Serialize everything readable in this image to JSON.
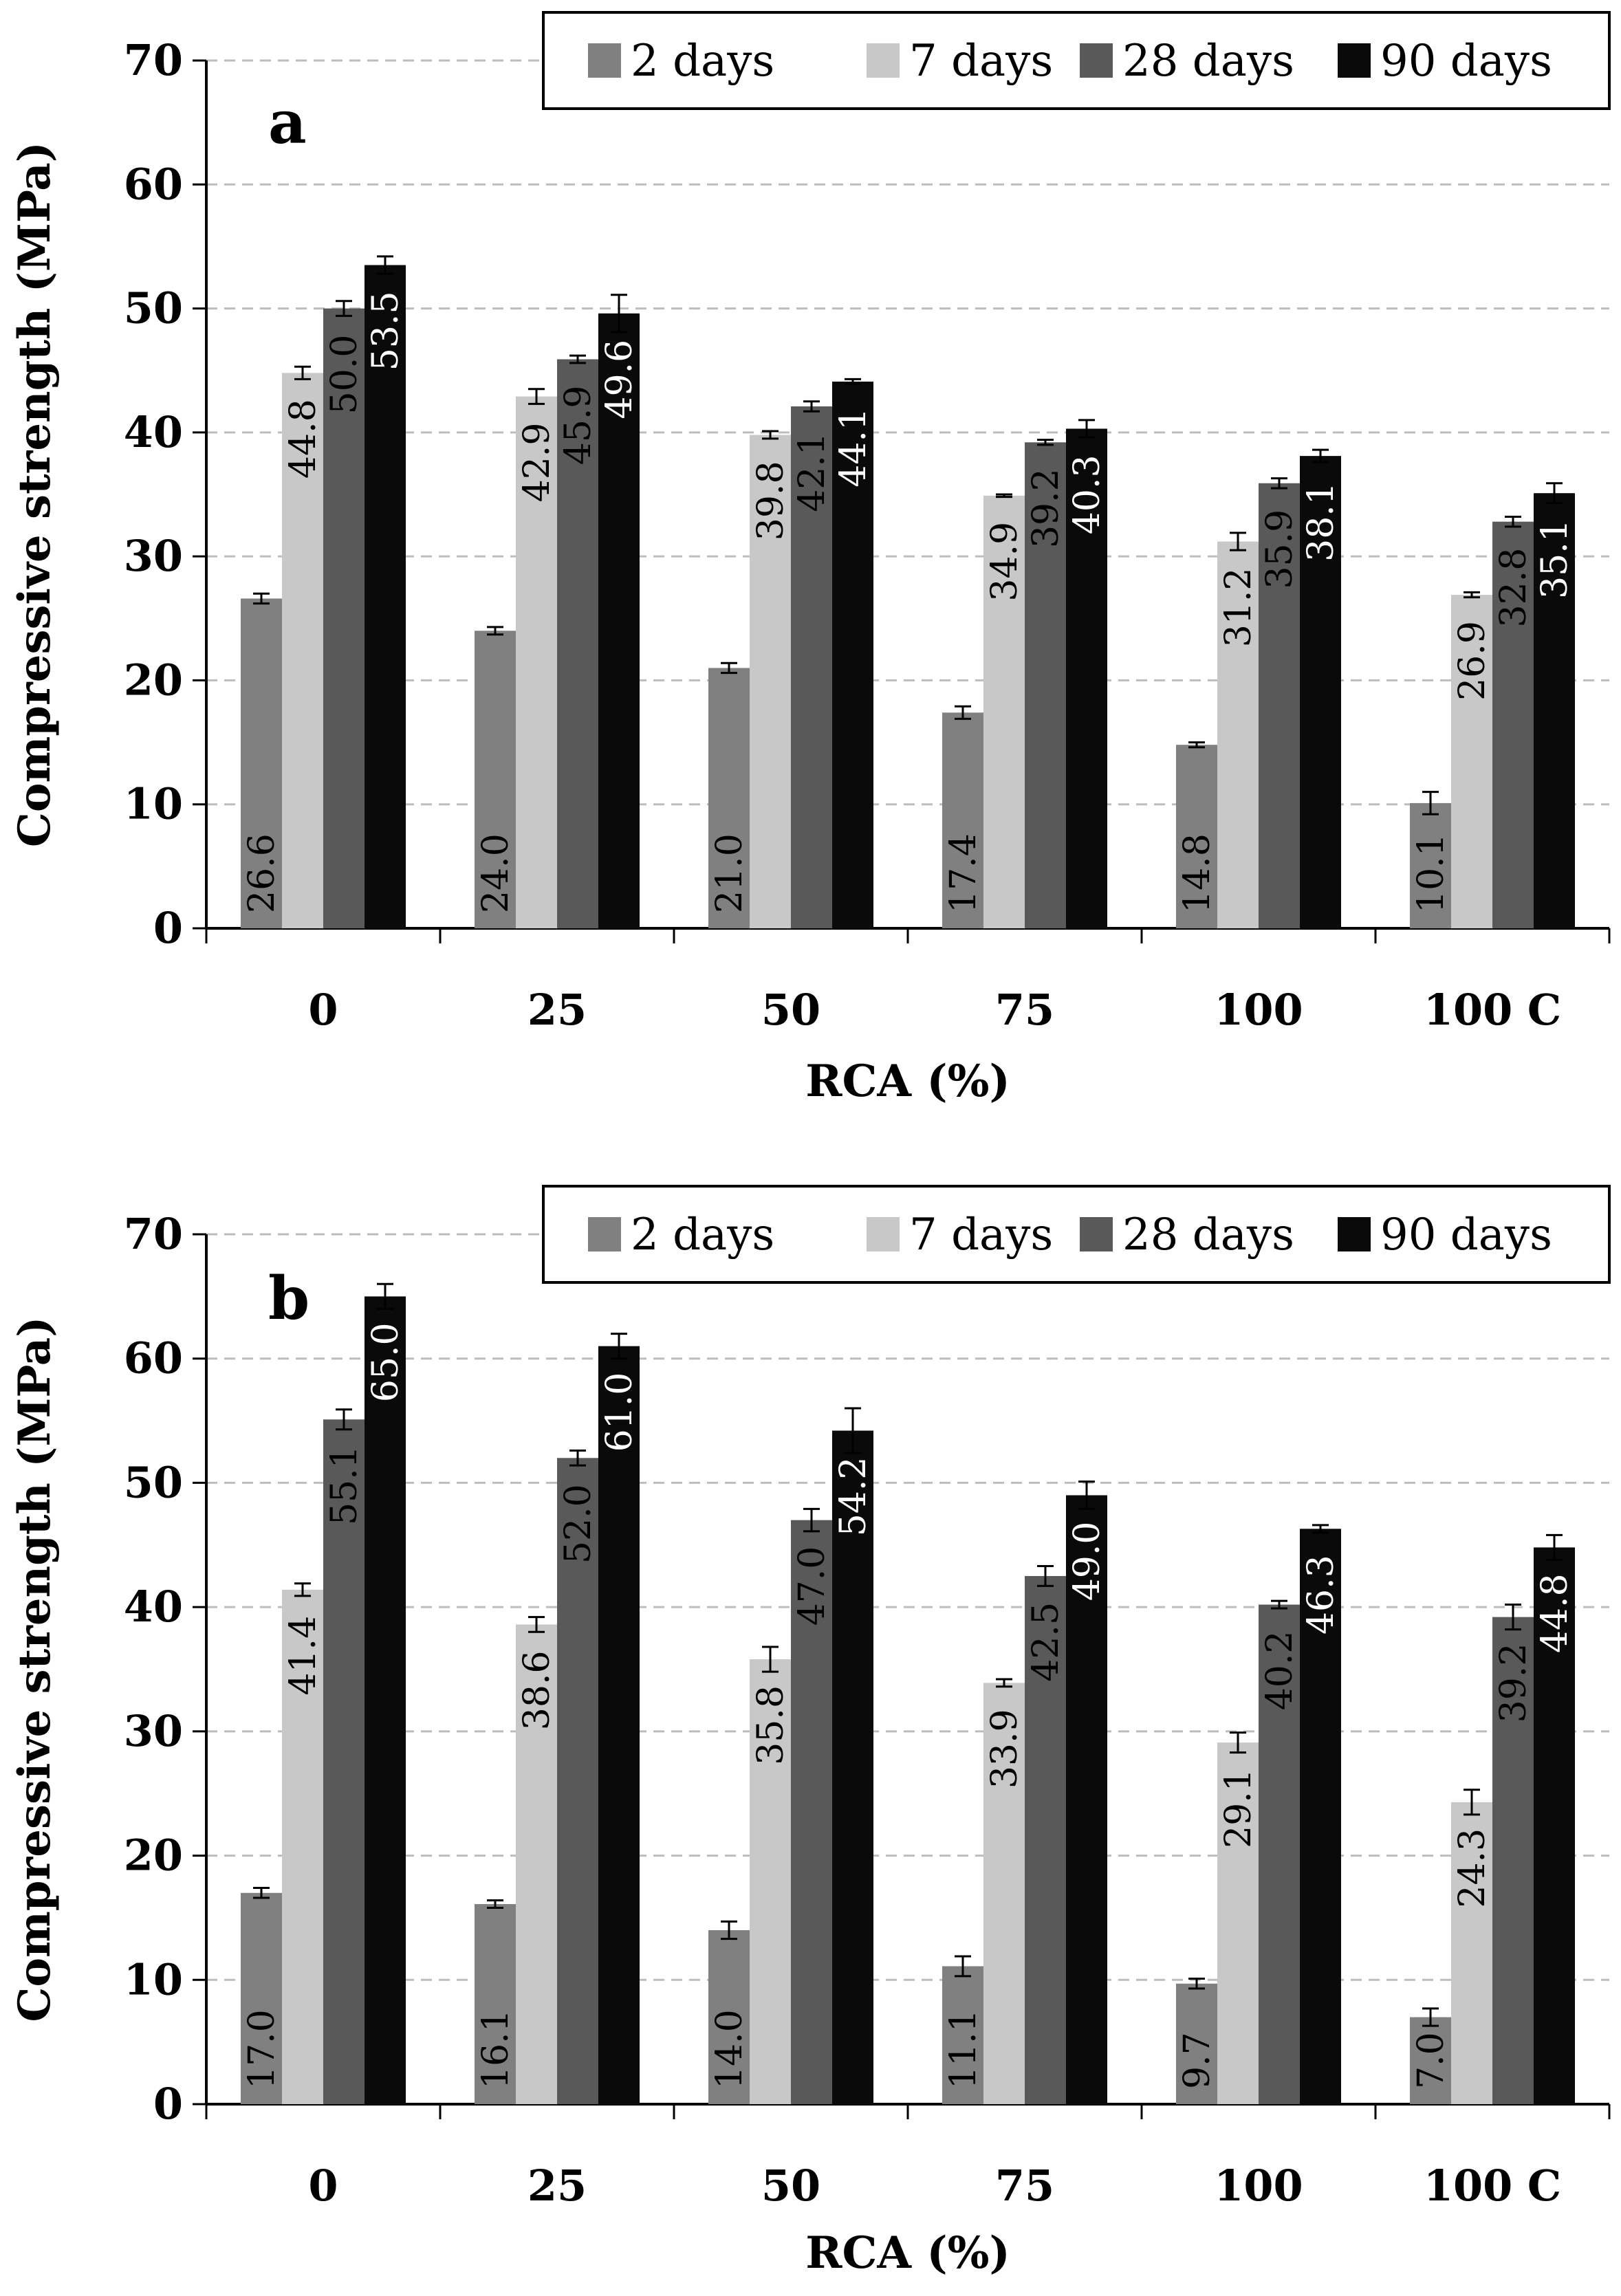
{
  "chart_data": [
    {
      "type": "bar",
      "panel_label": "a",
      "categories": [
        "0",
        "25",
        "50",
        "75",
        "100",
        "100 C"
      ],
      "series": [
        {
          "name": "2 days",
          "color": "#808080",
          "label_color": "#000000",
          "values": [
            26.6,
            24.0,
            21.0,
            17.4,
            14.8,
            10.1
          ],
          "errors": [
            0.4,
            0.3,
            0.4,
            0.5,
            0.2,
            0.9
          ]
        },
        {
          "name": "7 days",
          "color": "#c8c8c8",
          "label_color": "#000000",
          "values": [
            44.8,
            42.9,
            39.8,
            34.9,
            31.2,
            26.9
          ],
          "errors": [
            0.5,
            0.6,
            0.3,
            0.1,
            0.7,
            0.2
          ]
        },
        {
          "name": "28 days",
          "color": "#595959",
          "label_color": "#000000",
          "values": [
            50.0,
            45.9,
            42.1,
            39.2,
            35.9,
            32.8
          ],
          "errors": [
            0.6,
            0.3,
            0.4,
            0.2,
            0.4,
            0.4
          ]
        },
        {
          "name": "90 days",
          "color": "#0a0a0a",
          "label_color": "#ffffff",
          "values": [
            53.5,
            49.6,
            44.1,
            40.3,
            38.1,
            35.1
          ],
          "errors": [
            0.7,
            1.5,
            0.2,
            0.7,
            0.5,
            0.8
          ]
        }
      ],
      "xlabel": "RCA (%)",
      "ylabel": "Compressive strength (MPa)",
      "ylim": [
        0,
        70
      ],
      "yticks": [
        0,
        10,
        20,
        30,
        40,
        50,
        60,
        70
      ],
      "grid": "horizontal dashed",
      "legend_position": "top"
    },
    {
      "type": "bar",
      "panel_label": "b",
      "categories": [
        "0",
        "25",
        "50",
        "75",
        "100",
        "100 C"
      ],
      "series": [
        {
          "name": "2 days",
          "color": "#808080",
          "label_color": "#000000",
          "values": [
            17.0,
            16.1,
            14.0,
            11.1,
            9.7,
            7.0
          ],
          "errors": [
            0.4,
            0.3,
            0.7,
            0.8,
            0.4,
            0.7
          ]
        },
        {
          "name": "7 days",
          "color": "#c8c8c8",
          "label_color": "#000000",
          "values": [
            41.4,
            38.6,
            35.8,
            33.9,
            29.1,
            24.3
          ],
          "errors": [
            0.5,
            0.6,
            1.0,
            0.3,
            0.8,
            1.0
          ]
        },
        {
          "name": "28 days",
          "color": "#595959",
          "label_color": "#000000",
          "values": [
            55.1,
            52.0,
            47.0,
            42.5,
            40.2,
            39.2
          ],
          "errors": [
            0.8,
            0.6,
            0.9,
            0.8,
            0.3,
            1.0
          ]
        },
        {
          "name": "90 days",
          "color": "#0a0a0a",
          "label_color": "#ffffff",
          "values": [
            65.0,
            61.0,
            54.2,
            49.0,
            46.3,
            44.8
          ],
          "errors": [
            1.0,
            1.0,
            1.8,
            1.1,
            0.3,
            1.0
          ]
        }
      ],
      "xlabel": "RCA (%)",
      "ylabel": "Compressive strength (MPa)",
      "ylim": [
        0,
        70
      ],
      "yticks": [
        0,
        10,
        20,
        30,
        40,
        50,
        60,
        70
      ],
      "grid": "horizontal dashed",
      "legend_position": "top"
    }
  ]
}
